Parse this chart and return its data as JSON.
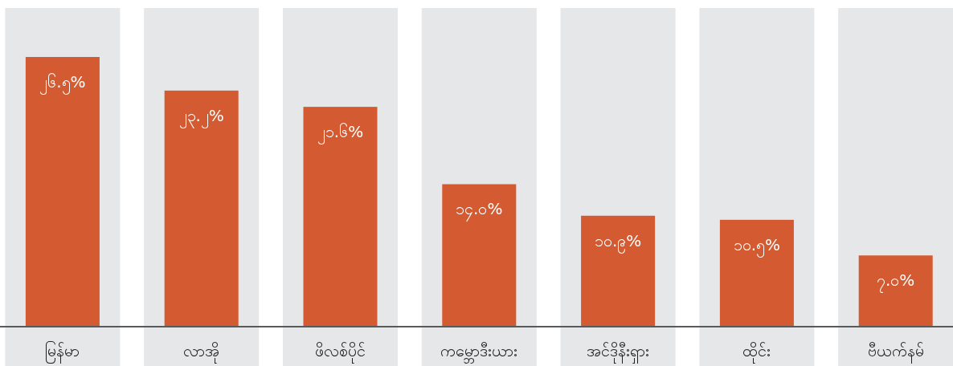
{
  "chart_data": {
    "type": "bar",
    "categories": [
      "မြန်မာ",
      "လာအို",
      "ဖိလစ်ပိုင်",
      "ကမ္ဘောဒီးယား",
      "အင်ဒိုနီးရှား",
      "ထိုင်း",
      "ဗီယက်နမ်"
    ],
    "values": [
      26.5,
      23.2,
      21.6,
      14.0,
      10.9,
      10.5,
      7.0
    ],
    "value_labels": [
      "၂၆.၅%",
      "၂၃.၂%",
      "၂၁.၆%",
      "၁၄.၀%",
      "၁၀.၉%",
      "၁၀.၅%",
      "၇.၀%"
    ],
    "color": "#d35a31",
    "bands": [
      {
        "axis": "x",
        "from": "မြန်မာ",
        "to": "မြန်မာ",
        "color": "#e6e7e9"
      },
      {
        "axis": "x",
        "from": "လာအို",
        "to": "လာအို",
        "color": "#e6e7e9"
      },
      {
        "axis": "x",
        "from": "ဖိလစ်ပိုင်",
        "to": "ဖိလစ်ပိုင်",
        "color": "#e6e7e9"
      },
      {
        "axis": "x",
        "from": "ကမ္ဘောဒီးယား",
        "to": "ကမ္ဘောဒီးယား",
        "color": "#e6e7e9"
      },
      {
        "axis": "x",
        "from": "အင်ဒိုနီးရှား",
        "to": "အင်ဒိုနီးရှား",
        "color": "#e6e7e9"
      },
      {
        "axis": "x",
        "from": "ထိုင်း",
        "to": "ထိုင်း",
        "color": "#e6e7e9"
      },
      {
        "axis": "x",
        "from": "ဗီယက်နမ်",
        "to": "ဗီယက်နမ်",
        "color": "#e6e7e9"
      }
    ],
    "grid": false,
    "legend": false
  }
}
